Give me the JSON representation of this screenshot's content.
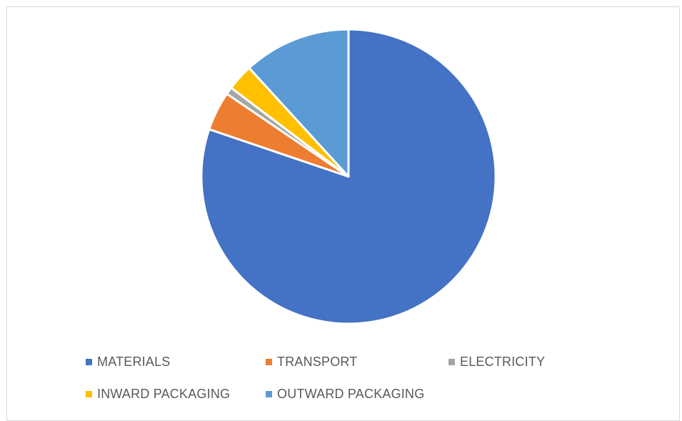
{
  "chart_data": {
    "type": "pie",
    "title": "",
    "start_angle_deg": 0,
    "direction": "clockwise",
    "slice_border_color": "#ffffff",
    "legend_position": "bottom",
    "slices": [
      {
        "label": "MATERIALS",
        "value": 80.2,
        "color": "#4472C4"
      },
      {
        "label": "TRANSPORT",
        "value": 4.3,
        "color": "#ED7D31"
      },
      {
        "label": "ELECTRICITY",
        "value": 0.8,
        "color": "#A5A5A5"
      },
      {
        "label": "INWARD PACKAGING",
        "value": 2.9,
        "color": "#FFC000"
      },
      {
        "label": "OUTWARD PACKAGING",
        "value": 11.8,
        "color": "#5B9BD5"
      }
    ]
  }
}
